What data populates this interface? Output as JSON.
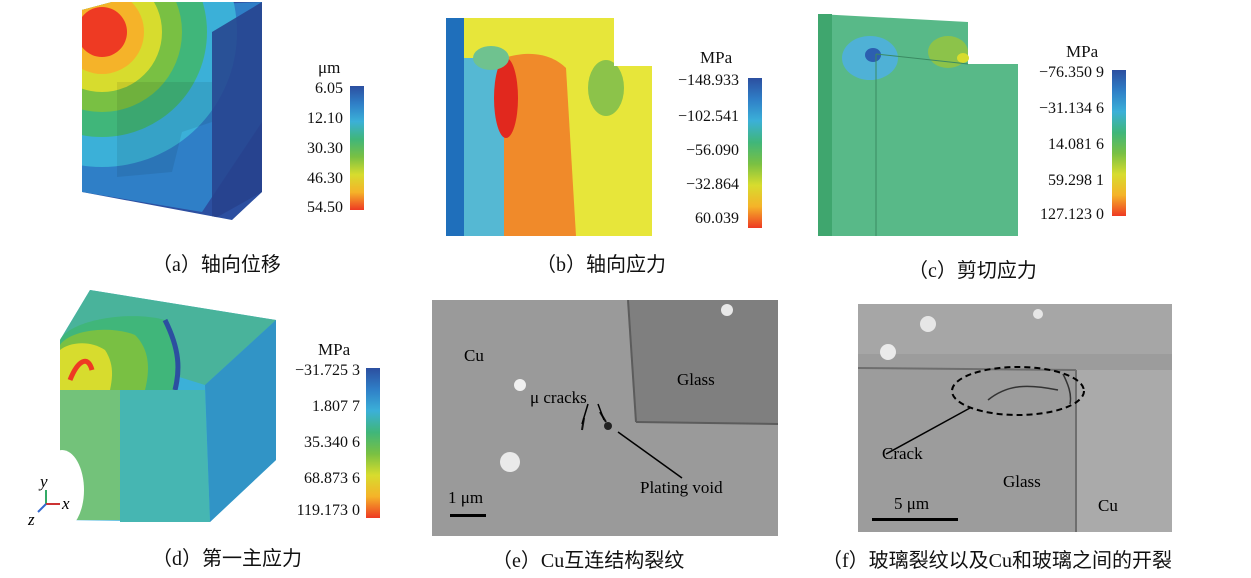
{
  "colors": {
    "scale": [
      "#2c4fa0",
      "#2f7fc7",
      "#3bb0d8",
      "#40b67a",
      "#79c043",
      "#d7dc2e",
      "#f5b329",
      "#ee3a23"
    ],
    "sem_bg": "#8f8f8f"
  },
  "panels": {
    "a": {
      "caption": "（a）轴向位移",
      "unit": "μm",
      "scale": [
        "6.05",
        "12.10",
        "30.30",
        "46.30",
        "54.50"
      ]
    },
    "b": {
      "caption": "（b）轴向应力",
      "unit": "MPa",
      "scale": [
        "−148.933",
        "−102.541",
        "−56.090",
        "−32.864",
        "60.039"
      ]
    },
    "c": {
      "caption": "（c）剪切应力",
      "unit": "MPa",
      "scale": [
        "−76.350 9",
        "−31.134 6",
        "14.081 6",
        "59.298 1",
        "127.123 0"
      ]
    },
    "d": {
      "caption": "（d）第一主应力",
      "unit": "MPa",
      "scale": [
        "−31.725 3",
        "1.807 7",
        "35.340 6",
        "68.873 6",
        "119.173 0"
      ],
      "axes": {
        "y": "y",
        "x": "x",
        "z": "z"
      }
    },
    "e": {
      "caption": "（e）Cu互连结构裂纹",
      "labels": {
        "cu": "Cu",
        "glass": "Glass",
        "cracks": "μ cracks",
        "void": "Plating void",
        "scalebar": "1 μm"
      }
    },
    "f": {
      "caption": "（f）玻璃裂纹以及Cu和玻璃之间的开裂",
      "labels": {
        "crack": "Crack",
        "glass": "Glass",
        "cu": "Cu",
        "scalebar": "5 μm"
      }
    }
  }
}
